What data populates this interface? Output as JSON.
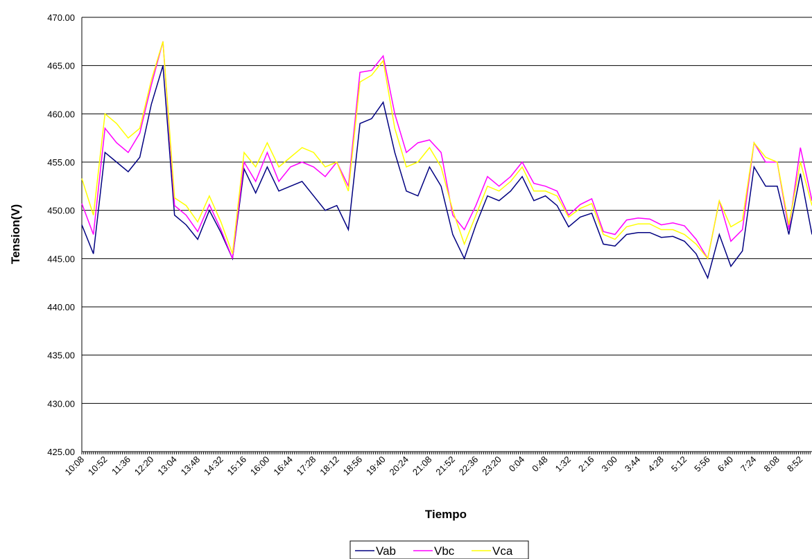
{
  "chart_data": {
    "type": "line",
    "x_label": "Tiempo",
    "y_label": "Tension(V)",
    "categories": [
      "10:08",
      null,
      "10:52",
      null,
      "11:36",
      null,
      "12:20",
      null,
      "13:04",
      null,
      "13:48",
      null,
      "14:32",
      null,
      "15:16",
      null,
      "16:00",
      null,
      "16:44",
      null,
      "17:28",
      null,
      "18:12",
      null,
      "18:56",
      null,
      "19:40",
      null,
      "20:24",
      null,
      "21:08",
      null,
      "21:52",
      null,
      "22:36",
      null,
      "23:20",
      null,
      "0:04",
      null,
      "0:48",
      null,
      "1:32",
      null,
      "2:16",
      null,
      "3:00",
      null,
      "3:44",
      null,
      "4:28",
      null,
      "5:12",
      null,
      "5:56",
      null,
      "6:40",
      null,
      "7:24",
      null,
      "8:08",
      null,
      "8:52",
      null
    ],
    "series": [
      {
        "name": "Vab",
        "color": "#000080",
        "values": [
          448.5,
          445.5,
          456,
          455,
          454,
          455.5,
          461,
          465,
          449.5,
          448.5,
          447,
          450,
          447.7,
          445,
          454.3,
          451.8,
          454.5,
          452,
          452.5,
          453,
          451.5,
          450,
          450.5,
          448,
          459,
          459.5,
          461.2,
          456,
          452,
          451.5,
          454.5,
          452.5,
          447.5,
          445,
          448.5,
          451.5,
          451,
          452,
          453.5,
          451,
          451.5,
          450.5,
          448.3,
          449.3,
          449.7,
          446.5,
          446.3,
          447.5,
          447.7,
          447.7,
          447.2,
          447.3,
          446.8,
          445.5,
          443,
          447.5,
          444.2,
          445.8,
          454.5,
          452.5,
          452.5,
          447.5,
          453.8,
          447.5
        ]
      },
      {
        "name": "Vbc",
        "color": "#ff00ff",
        "values": [
          450.7,
          447.5,
          458.5,
          457,
          456,
          458,
          463,
          467.5,
          450.5,
          449.5,
          447.8,
          450.6,
          448,
          445,
          455,
          453,
          456,
          453,
          454.5,
          455,
          454.5,
          453.5,
          455,
          452.5,
          464.3,
          464.5,
          466,
          460,
          456,
          457,
          457.3,
          456,
          449.5,
          448,
          450.5,
          453.5,
          452.5,
          453.5,
          455,
          452.8,
          452.5,
          452,
          449.5,
          450.6,
          451.2,
          447.8,
          447.5,
          449,
          449.2,
          449.1,
          448.5,
          448.7,
          448.4,
          447,
          445,
          451,
          446.8,
          448,
          457,
          455,
          455,
          448,
          456.5,
          451
        ]
      },
      {
        "name": "Vca",
        "color": "#ffff00",
        "values": [
          453.3,
          449.5,
          460,
          459,
          457.5,
          458.5,
          463.5,
          467.5,
          451.3,
          450.5,
          448.8,
          451.5,
          448.8,
          445.5,
          456,
          454.5,
          457,
          454.5,
          455.5,
          456.5,
          456,
          454.5,
          455,
          452,
          463.3,
          464,
          465.5,
          458.5,
          454.5,
          455,
          456.5,
          454.5,
          450,
          446.5,
          449.5,
          452.5,
          452,
          453,
          454.5,
          452,
          452,
          451.5,
          449.3,
          450.2,
          450.7,
          447.5,
          447,
          448.3,
          448.6,
          448.6,
          448,
          448,
          447.5,
          446.5,
          445,
          451,
          448.3,
          449,
          457,
          455.5,
          455,
          448.5,
          455,
          450.5
        ]
      }
    ],
    "ylim": [
      425,
      470
    ],
    "yticks": [
      {
        "value": 425,
        "label": "425.00"
      },
      {
        "value": 430,
        "label": "430.00"
      },
      {
        "value": 435,
        "label": "435.00"
      },
      {
        "value": 440,
        "label": "440.00"
      },
      {
        "value": 445,
        "label": "445.00"
      },
      {
        "value": 450,
        "label": "450.00"
      },
      {
        "value": 455,
        "label": "455.00"
      },
      {
        "value": 460,
        "label": "460.00"
      },
      {
        "value": 465,
        "label": "465.00"
      },
      {
        "value": 470,
        "label": "470.00"
      }
    ],
    "grid": true,
    "legend": "bottom"
  }
}
